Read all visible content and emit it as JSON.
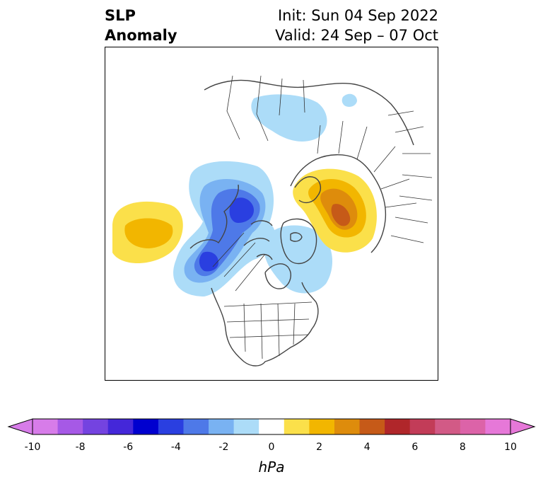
{
  "title": {
    "variable_line1": "SLP",
    "variable_line2": "Anomaly",
    "init": "Init: Sun 04 Sep 2022",
    "valid": "Valid: 24 Sep – 07 Oct"
  },
  "map": {
    "projection": "north-polar",
    "region": "North America / Arctic / North Atlantic",
    "anomaly_features": [
      {
        "name": "north-pacific-high",
        "sign": "positive",
        "peak_hPa": 2
      },
      {
        "name": "alaska-low-west",
        "sign": "negative",
        "peak_hPa": -5
      },
      {
        "name": "alaska-low-north",
        "sign": "negative",
        "peak_hPa": -5
      },
      {
        "name": "greenland-low",
        "sign": "negative",
        "peak_hPa": -1
      },
      {
        "name": "siberia-low",
        "sign": "negative",
        "peak_hPa": -1
      },
      {
        "name": "scandinavia-high",
        "sign": "positive",
        "peak_hPa": 4
      }
    ]
  },
  "colorbar": {
    "unit": "hPa",
    "ticks": [
      "-10",
      "-8",
      "-6",
      "-4",
      "-2",
      "0",
      "2",
      "4",
      "6",
      "8",
      "10"
    ],
    "bins": [
      "#d77ce9",
      "#a659e6",
      "#7443e0",
      "#4427d9",
      "#0000cf",
      "#2a3fe0",
      "#4e79e8",
      "#79b2f2",
      "#acdcf8",
      "#ffffff",
      "#fbe04a",
      "#f2b600",
      "#de8c0c",
      "#c65a18",
      "#b0262a",
      "#c23c58",
      "#d25a86",
      "#dc63a8",
      "#e678d8"
    ],
    "under_color": "#d77ce9",
    "over_color": "#e678d8"
  },
  "colors": {
    "coastline": "#444444",
    "borders": "#333333"
  }
}
